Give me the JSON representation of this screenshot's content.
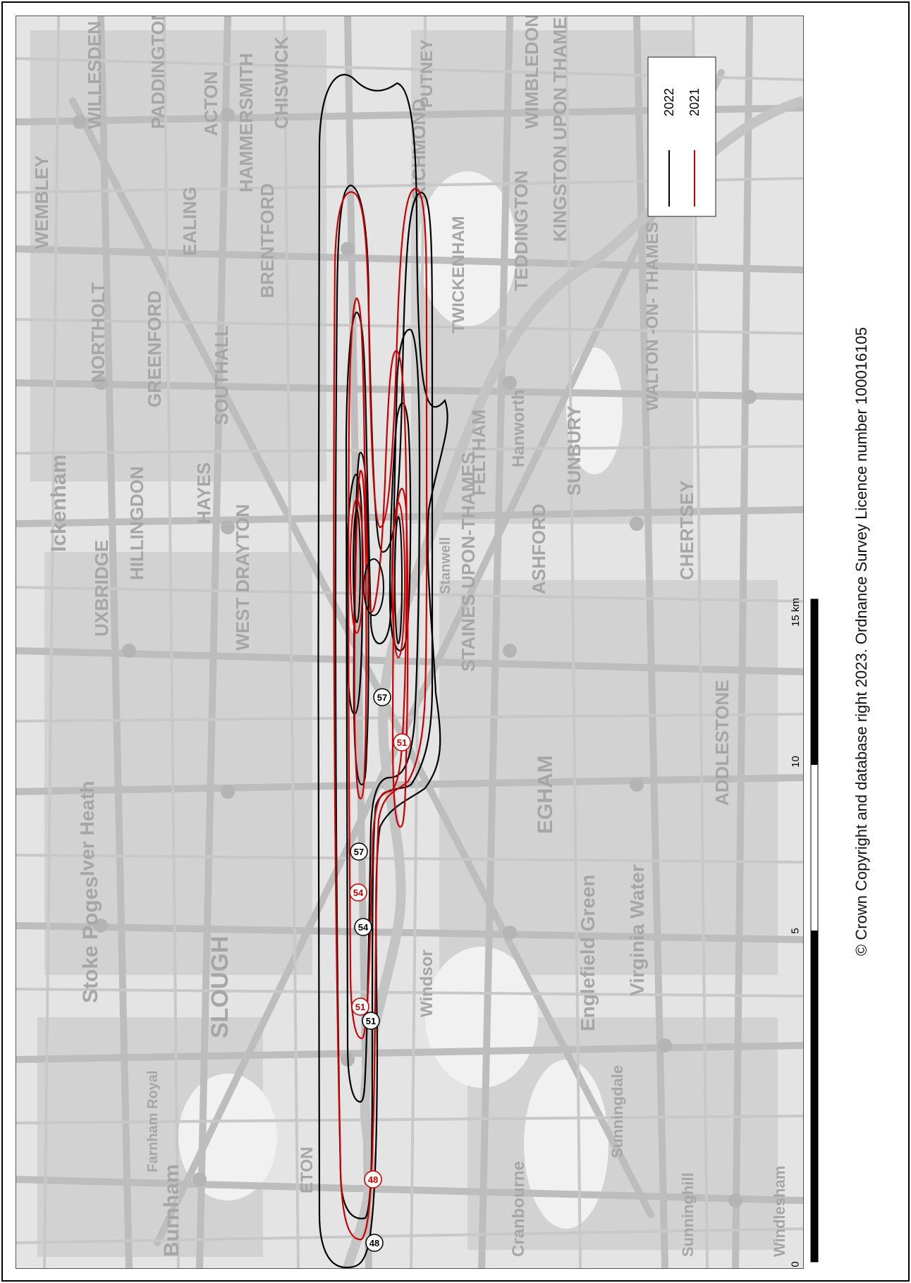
{
  "legend": {
    "items": [
      {
        "label": "2022",
        "color": "#000000"
      },
      {
        "label": "2021",
        "color": "#cc0000"
      }
    ]
  },
  "scale_bar": {
    "unit_label": "15 km",
    "ticks": [
      "0",
      "5",
      "10"
    ]
  },
  "contour_labels": {
    "c2022": [
      "48",
      "51",
      "54",
      "57",
      "57"
    ],
    "c2021": [
      "48",
      "51",
      "51",
      "54"
    ]
  },
  "place_names": [
    "WEMBLEY",
    "WILLESDEN",
    "PADDINGTON",
    "NORTHOLT",
    "GREENFORD",
    "EALING",
    "ACTON",
    "HAMMERSMITH",
    "CHISWICK",
    "BRENTFORD",
    "SOUTHALL",
    "HAYES",
    "HILLINGDON",
    "UXBRIDGE",
    "Ickenham",
    "WEST DRAYTON",
    "Stanwell",
    "FELTHAM",
    "Hanworth",
    "TWICKENHAM",
    "RICHMOND",
    "TEDDINGTON",
    "KINGSTON UPON THAMES",
    "WIMBLEDON",
    "PUTNEY",
    "SLOUGH",
    "Stoke Poges",
    "Burnham",
    "ETON",
    "Windsor",
    "EGHAM",
    "STAINES UPON-THAMES",
    "ASHFORD",
    "SUNBURY",
    "CHERTSEY",
    "ADDLESTONE",
    "WALTON -ON- THAMES",
    "Englefield Green",
    "Virginia Water",
    "Sunningdale",
    "Sunninghill",
    "Windlesham",
    "Cranbourne",
    "Iver Heath",
    "Farnham Royal"
  ],
  "copyright": "© Crown Copyright and database right 2023. Ordnance Survey Licence number 100016105"
}
